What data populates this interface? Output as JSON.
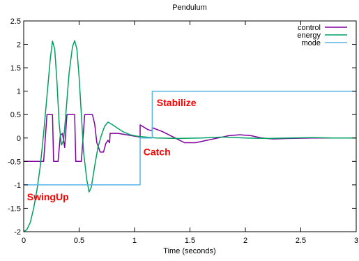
{
  "chart_data": {
    "type": "line",
    "title": "Pendulum",
    "xlabel": "Time (seconds)",
    "ylabel": "",
    "xlim": [
      0,
      3
    ],
    "ylim": [
      -2,
      2.5
    ],
    "grid": false,
    "legend_position": "top-right",
    "x_ticks": [
      0,
      0.5,
      1,
      1.5,
      2,
      2.5,
      3
    ],
    "x_tick_labels": [
      "0",
      "0.5",
      "1",
      "1.5",
      "2",
      "2.5",
      "3"
    ],
    "y_ticks": [
      -2,
      -1.5,
      -1,
      -0.5,
      0,
      0.5,
      1,
      1.5,
      2,
      2.5
    ],
    "y_tick_labels": [
      "-2",
      "-1.5",
      "-1",
      "-0.5",
      "0",
      "0.5",
      "1",
      "1.5",
      "2",
      "2.5"
    ],
    "series": [
      {
        "name": "control",
        "color": "#8000a0",
        "points": [
          [
            0,
            -0.5
          ],
          [
            0.18,
            -0.5
          ],
          [
            0.21,
            0.5
          ],
          [
            0.26,
            0.5
          ],
          [
            0.27,
            -0.5
          ],
          [
            0.31,
            -0.5
          ],
          [
            0.33,
            0.05
          ],
          [
            0.35,
            0.1
          ],
          [
            0.37,
            -0.2
          ],
          [
            0.39,
            0.5
          ],
          [
            0.46,
            0.5
          ],
          [
            0.47,
            -0.5
          ],
          [
            0.52,
            -0.5
          ],
          [
            0.55,
            0.5
          ],
          [
            0.62,
            0.5
          ],
          [
            0.64,
            0.3
          ],
          [
            0.66,
            -0.1
          ],
          [
            0.69,
            -0.3
          ],
          [
            0.72,
            -0.3
          ],
          [
            0.74,
            -0.12
          ],
          [
            0.76,
            -0.05
          ],
          [
            0.775,
            -0.1
          ],
          [
            0.78,
            0.1
          ],
          [
            0.85,
            0.1
          ],
          [
            0.9,
            0.08
          ],
          [
            1.0,
            0.04
          ],
          [
            1.05,
            0.02
          ],
          [
            1.05,
            0.28
          ],
          [
            1.12,
            0.18
          ],
          [
            1.16,
            0.15
          ],
          [
            1.16,
            0.22
          ],
          [
            1.25,
            0.14
          ],
          [
            1.35,
            0.02
          ],
          [
            1.45,
            -0.1
          ],
          [
            1.55,
            -0.1
          ],
          [
            1.65,
            -0.05
          ],
          [
            1.75,
            0.0
          ],
          [
            1.85,
            0.05
          ],
          [
            1.95,
            0.07
          ],
          [
            2.05,
            0.05
          ],
          [
            2.15,
            0.0
          ],
          [
            2.25,
            -0.02
          ],
          [
            2.4,
            -0.01
          ],
          [
            2.6,
            0.0
          ],
          [
            3.0,
            0.0
          ]
        ]
      },
      {
        "name": "energy",
        "color": "#00a060",
        "points": [
          [
            0,
            -2.0
          ],
          [
            0.03,
            -1.95
          ],
          [
            0.06,
            -1.8
          ],
          [
            0.09,
            -1.5
          ],
          [
            0.12,
            -1.1
          ],
          [
            0.15,
            -0.6
          ],
          [
            0.18,
            0.1
          ],
          [
            0.21,
            0.9
          ],
          [
            0.24,
            1.7
          ],
          [
            0.26,
            2.07
          ],
          [
            0.28,
            1.9
          ],
          [
            0.3,
            1.2
          ],
          [
            0.32,
            0.3
          ],
          [
            0.34,
            -0.15
          ],
          [
            0.36,
            -0.05
          ],
          [
            0.38,
            0.5
          ],
          [
            0.41,
            1.4
          ],
          [
            0.44,
            1.95
          ],
          [
            0.46,
            2.08
          ],
          [
            0.48,
            1.9
          ],
          [
            0.5,
            1.3
          ],
          [
            0.52,
            0.5
          ],
          [
            0.54,
            -0.3
          ],
          [
            0.57,
            -0.9
          ],
          [
            0.59,
            -1.15
          ],
          [
            0.61,
            -1.05
          ],
          [
            0.64,
            -0.6
          ],
          [
            0.67,
            -0.2
          ],
          [
            0.7,
            0.05
          ],
          [
            0.73,
            0.25
          ],
          [
            0.76,
            0.34
          ],
          [
            0.79,
            0.3
          ],
          [
            0.84,
            0.22
          ],
          [
            0.9,
            0.13
          ],
          [
            0.96,
            0.07
          ],
          [
            1.02,
            0.04
          ],
          [
            1.06,
            0.03
          ],
          [
            1.1,
            0.02
          ],
          [
            1.2,
            0.0
          ],
          [
            1.4,
            -0.01
          ],
          [
            1.6,
            0.0
          ],
          [
            1.8,
            0.02
          ],
          [
            2.0,
            0.0
          ],
          [
            2.2,
            -0.01
          ],
          [
            2.4,
            0.0
          ],
          [
            2.6,
            0.01
          ],
          [
            2.8,
            0.0
          ],
          [
            3.0,
            0.0
          ]
        ]
      },
      {
        "name": "mode",
        "color": "#56b4e9",
        "points": [
          [
            0,
            -1
          ],
          [
            1.05,
            -1
          ],
          [
            1.05,
            0
          ],
          [
            1.16,
            0
          ],
          [
            1.16,
            1
          ],
          [
            3.0,
            1
          ]
        ]
      }
    ],
    "annotations": [
      {
        "text": "SwingUp",
        "x": 0.03,
        "y": -1.33,
        "color": "#ff0000"
      },
      {
        "text": "Catch",
        "x": 1.08,
        "y": -0.37,
        "color": "#ff0000"
      },
      {
        "text": "Stabilize",
        "x": 1.2,
        "y": 0.68,
        "color": "#ff0000"
      }
    ]
  }
}
